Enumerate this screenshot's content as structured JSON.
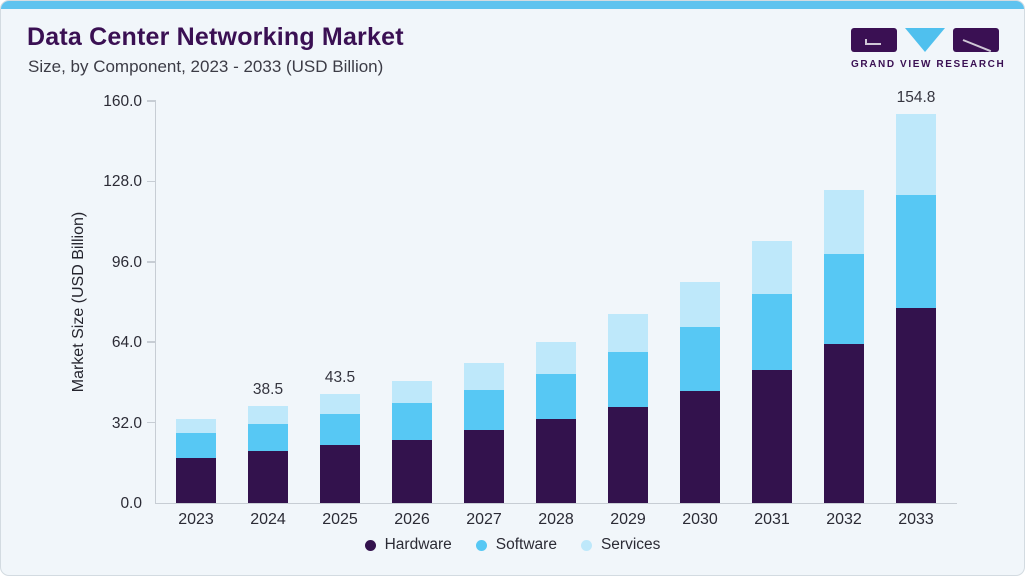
{
  "page": {
    "title": "Data Center Networking Market",
    "subtitle": "Size, by Component, 2023 - 2033 (USD Billion)",
    "logo_text": "GRAND VIEW RESEARCH"
  },
  "colors": {
    "accent_bar": "#5FC3EF",
    "title_text": "#3A1053",
    "logo_triangle": "#4FC0EE",
    "axis_line": "#C7CDD4"
  },
  "chart_data": {
    "type": "bar",
    "stacked": true,
    "title": "Data Center Networking Market Size, by Component, 2023 - 2033 (USD Billion)",
    "xlabel": "",
    "ylabel": "Market Size (USD Billion)",
    "ylim": [
      0,
      160
    ],
    "y_ticks": [
      "0.0",
      "32.0",
      "64.0",
      "96.0",
      "128.0",
      "160.0"
    ],
    "grid": false,
    "legend_position": "bottom",
    "categories": [
      "2023",
      "2024",
      "2025",
      "2026",
      "2027",
      "2028",
      "2029",
      "2030",
      "2031",
      "2032",
      "2033"
    ],
    "series": [
      {
        "name": "Hardware",
        "color": "#33124D",
        "values": [
          18.0,
          20.6,
          23.0,
          25.2,
          28.9,
          33.3,
          38.4,
          44.7,
          52.8,
          63.1,
          77.5
        ]
      },
      {
        "name": "Software",
        "color": "#57C8F4",
        "values": [
          9.8,
          10.8,
          12.5,
          14.5,
          16.1,
          18.1,
          21.7,
          25.5,
          30.2,
          36.2,
          45.2
        ]
      },
      {
        "name": "Services",
        "color": "#BEE8FA",
        "values": [
          5.8,
          7.1,
          8.0,
          8.9,
          10.6,
          12.8,
          15.1,
          17.6,
          21.1,
          25.3,
          32.1
        ]
      }
    ],
    "totals": [
      33.6,
      38.5,
      43.5,
      48.6,
      55.6,
      64.2,
      75.2,
      87.8,
      104.1,
      124.6,
      154.8
    ],
    "total_labels": {
      "2024": "38.5",
      "2025": "43.5",
      "2033": "154.8"
    }
  }
}
